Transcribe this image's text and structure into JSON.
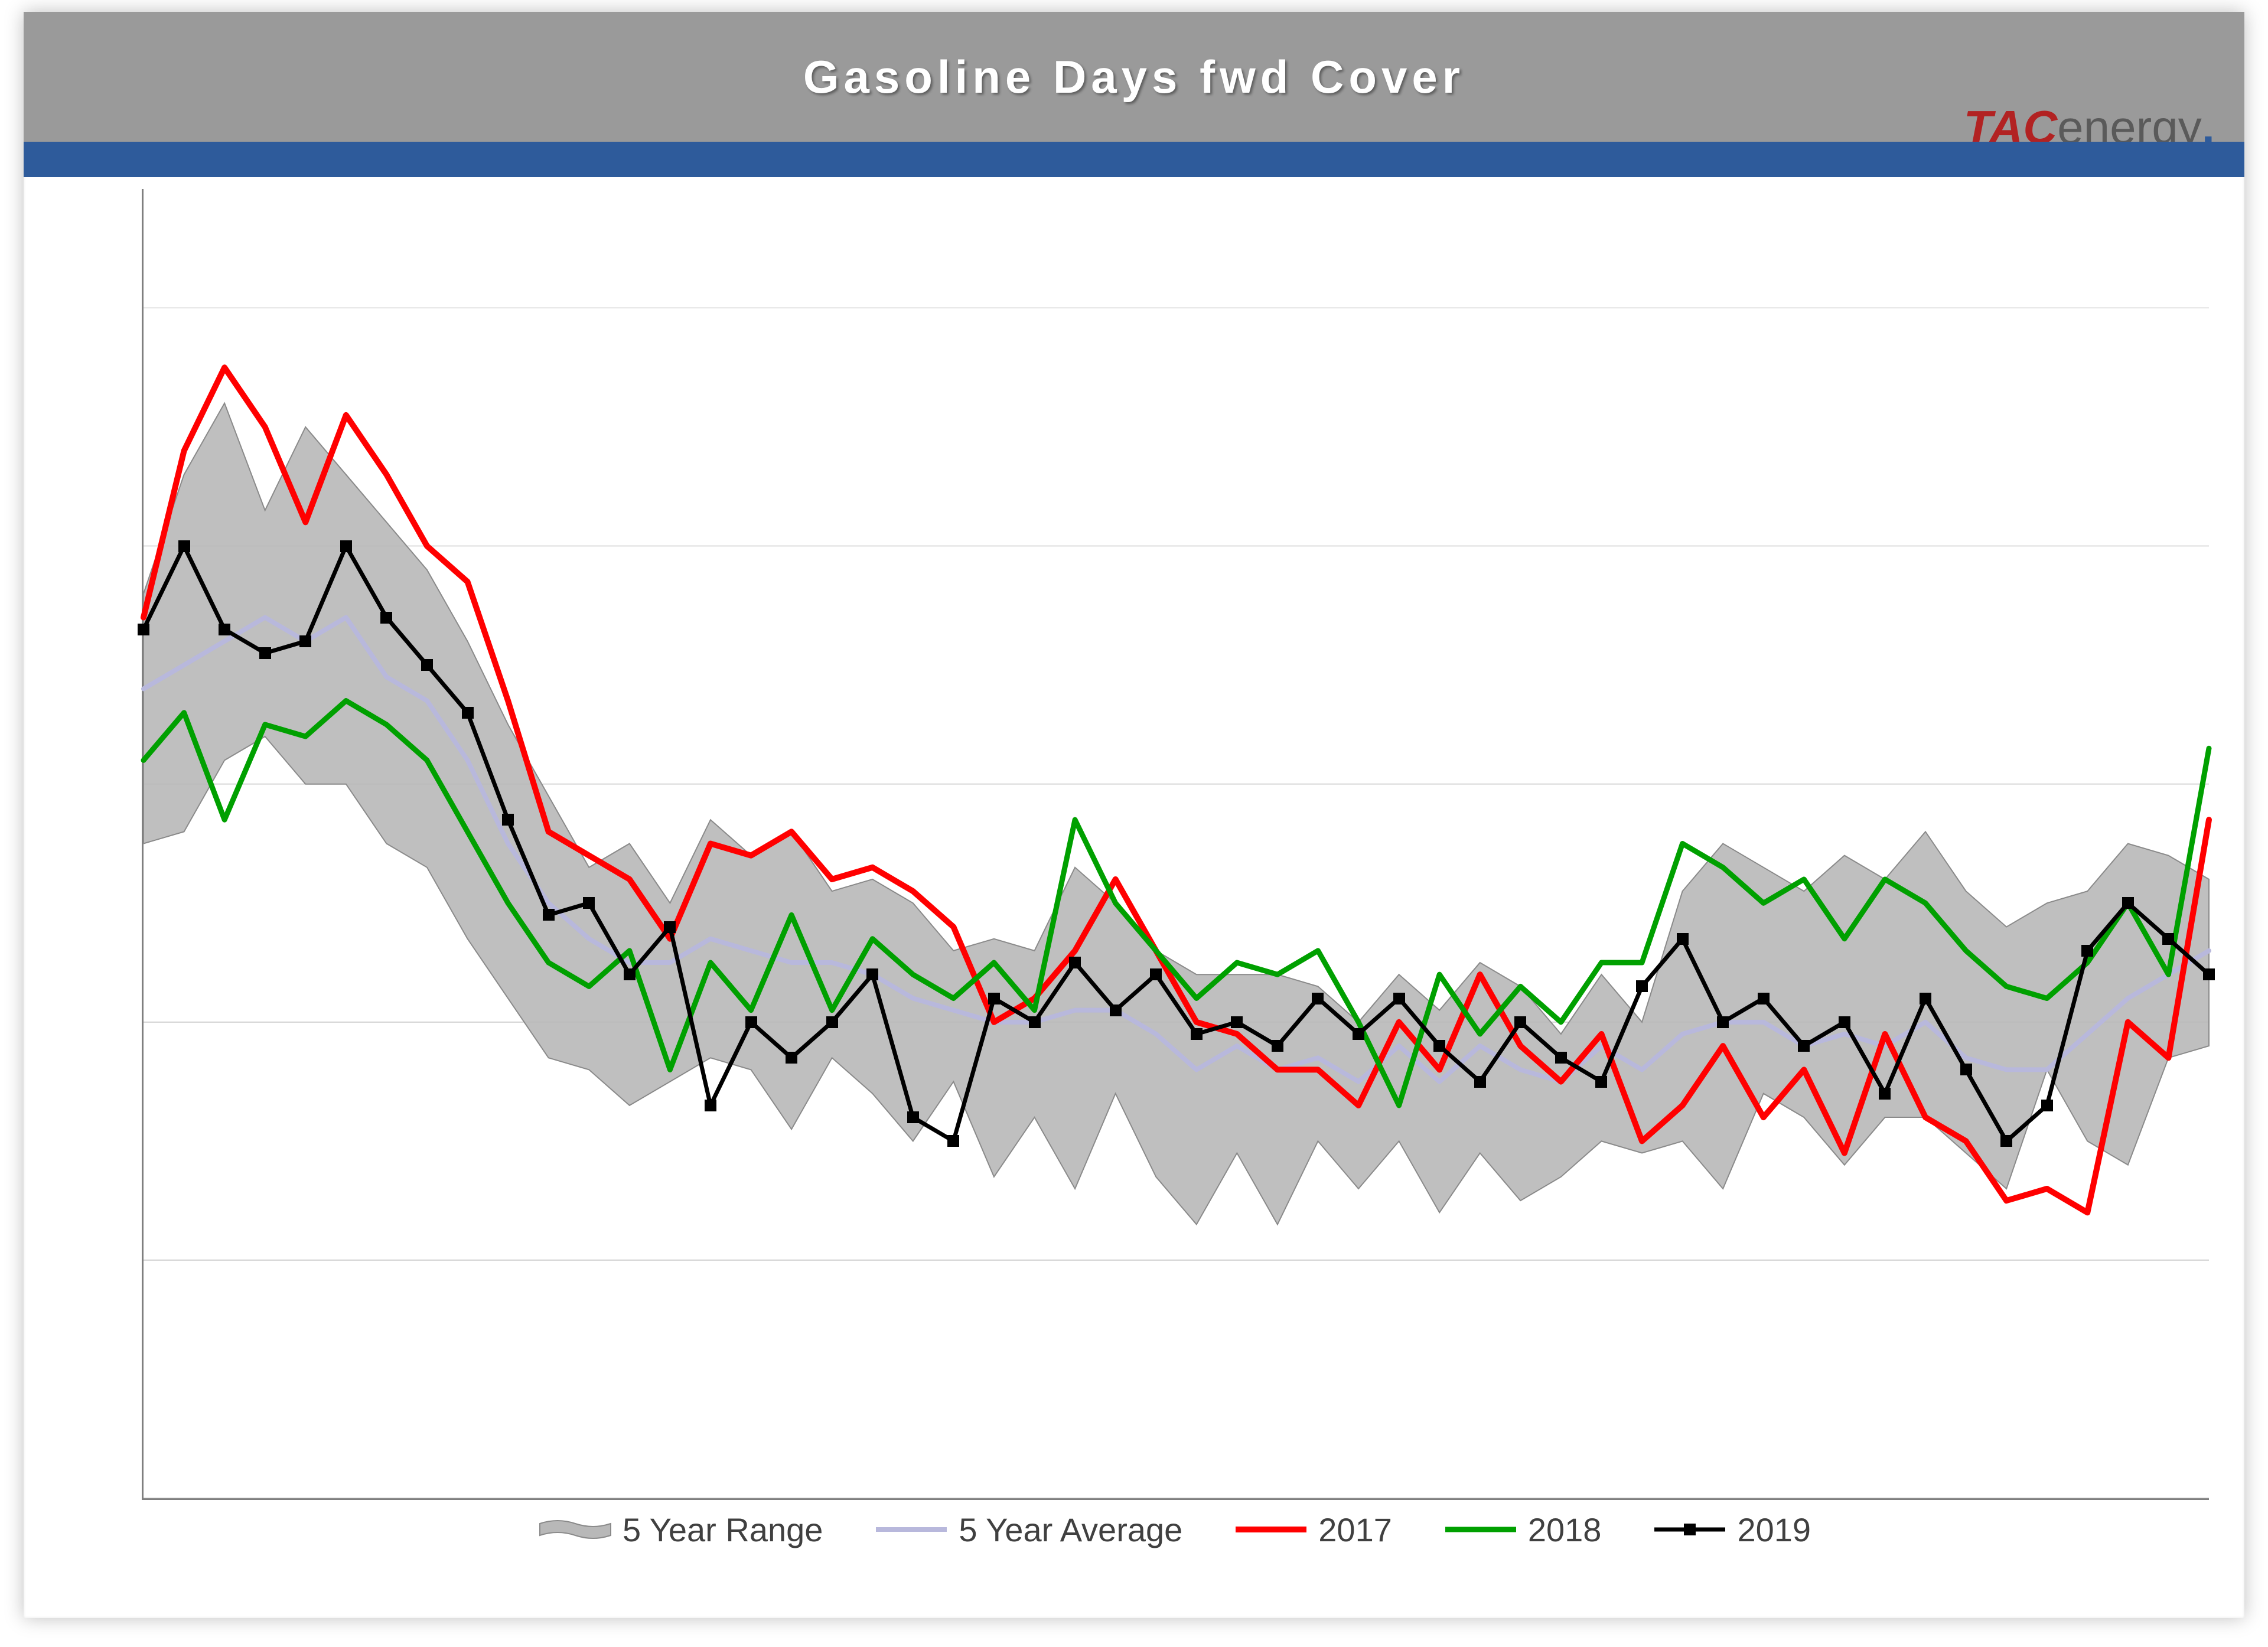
{
  "chart": {
    "type": "line",
    "title": "Gasoline Days fwd Cover",
    "title_fontsize": 78,
    "title_color": "#ffffff",
    "title_bar_color": "#9a9a9a",
    "blue_band_color": "#2e5b9b",
    "background_color": "#ffffff",
    "grid_color": "#9a9a9a",
    "axis_color": "#7f7f7f",
    "logo": {
      "tac_text": "TAC",
      "tac_color": "#b22222",
      "tail_text": "energy",
      "tail_color": "#5a5a5a",
      "dot_color": "#2e5b9b"
    },
    "ylim": [
      20,
      31
    ],
    "ytick_step": 2,
    "n_points": 52,
    "range": {
      "label": "5 Year Range",
      "fill": "#b8b8b8",
      "stroke": "#8a8a8a",
      "upper": [
        27.6,
        28.6,
        29.2,
        28.3,
        29.0,
        28.6,
        28.2,
        27.8,
        27.2,
        26.5,
        25.9,
        25.3,
        25.5,
        25.0,
        25.7,
        25.4,
        25.6,
        25.1,
        25.2,
        25.0,
        24.6,
        24.7,
        24.6,
        25.3,
        25.0,
        24.6,
        24.4,
        24.4,
        24.4,
        24.3,
        24.0,
        24.4,
        24.1,
        24.5,
        24.3,
        23.9,
        24.4,
        24.0,
        25.1,
        25.5,
        25.3,
        25.1,
        25.4,
        25.2,
        25.6,
        25.1,
        24.8,
        25.0,
        25.1,
        25.5,
        25.4,
        25.2
      ],
      "lower": [
        25.5,
        25.6,
        26.2,
        26.4,
        26.0,
        26.0,
        25.5,
        25.3,
        24.7,
        24.2,
        23.7,
        23.6,
        23.3,
        23.5,
        23.7,
        23.6,
        23.1,
        23.7,
        23.4,
        23.0,
        23.5,
        22.7,
        23.2,
        22.6,
        23.4,
        22.7,
        22.3,
        22.9,
        22.3,
        23.0,
        22.6,
        23.0,
        22.4,
        22.9,
        22.5,
        22.7,
        23.0,
        22.9,
        23.0,
        22.6,
        23.4,
        23.2,
        22.8,
        23.2,
        23.2,
        22.9,
        22.6,
        23.6,
        23.0,
        22.8,
        23.7,
        23.8
      ]
    },
    "series": [
      {
        "label": "5 Year Average",
        "color": "#b8b8dc",
        "width": 8,
        "marker": "none",
        "values": [
          26.8,
          27.0,
          27.2,
          27.4,
          27.2,
          27.4,
          26.9,
          26.7,
          26.2,
          25.5,
          25.0,
          24.7,
          24.5,
          24.5,
          24.7,
          24.6,
          24.5,
          24.5,
          24.4,
          24.2,
          24.1,
          24.0,
          24.0,
          24.1,
          24.1,
          23.9,
          23.6,
          23.8,
          23.6,
          23.7,
          23.5,
          23.8,
          23.5,
          23.8,
          23.6,
          23.5,
          23.8,
          23.6,
          23.9,
          24.0,
          24.0,
          23.8,
          23.9,
          23.8,
          24.0,
          23.7,
          23.6,
          23.6,
          23.9,
          24.2,
          24.4,
          24.6
        ]
      },
      {
        "label": "2017",
        "color": "#ff0000",
        "width": 10,
        "marker": "none",
        "values": [
          27.4,
          28.8,
          29.5,
          29.0,
          28.2,
          29.1,
          28.6,
          28.0,
          27.7,
          26.7,
          25.6,
          25.4,
          25.2,
          24.7,
          25.5,
          25.4,
          25.6,
          25.2,
          25.3,
          25.1,
          24.8,
          24.0,
          24.2,
          24.6,
          25.2,
          24.6,
          24.0,
          23.9,
          23.6,
          23.6,
          23.3,
          24.0,
          23.6,
          24.4,
          23.8,
          23.5,
          23.9,
          23.0,
          23.3,
          23.8,
          23.2,
          23.6,
          22.9,
          23.9,
          23.2,
          23.0,
          22.5,
          22.6,
          22.4,
          24.0,
          23.7,
          25.7
        ]
      },
      {
        "label": "2018",
        "color": "#00a000",
        "width": 9,
        "marker": "none",
        "values": [
          26.2,
          26.6,
          25.7,
          26.5,
          26.4,
          26.7,
          26.5,
          26.2,
          25.6,
          25.0,
          24.5,
          24.3,
          24.6,
          23.6,
          24.5,
          24.1,
          24.9,
          24.1,
          24.7,
          24.4,
          24.2,
          24.5,
          24.1,
          25.7,
          25.0,
          24.6,
          24.2,
          24.5,
          24.4,
          24.6,
          24.0,
          23.3,
          24.4,
          23.9,
          24.3,
          24.0,
          24.5,
          24.5,
          25.5,
          25.3,
          25.0,
          25.2,
          24.7,
          25.2,
          25.0,
          24.6,
          24.3,
          24.2,
          24.5,
          25.0,
          24.4,
          26.3
        ]
      },
      {
        "label": "2019",
        "color": "#000000",
        "width": 7,
        "marker": "square",
        "marker_size": 20,
        "values": [
          27.3,
          28.0,
          27.3,
          27.1,
          27.2,
          28.0,
          27.4,
          27.0,
          26.6,
          25.7,
          24.9,
          25.0,
          24.4,
          24.8,
          23.3,
          24.0,
          23.7,
          24.0,
          24.4,
          23.2,
          23.0,
          24.2,
          24.0,
          24.5,
          24.1,
          24.4,
          23.9,
          24.0,
          23.8,
          24.2,
          23.9,
          24.2,
          23.8,
          23.5,
          24.0,
          23.7,
          23.5,
          24.3,
          24.7,
          24.0,
          24.2,
          23.8,
          24.0,
          23.4,
          24.2,
          23.6,
          23.0,
          23.3,
          24.6,
          25.0,
          24.7,
          24.4
        ]
      }
    ],
    "legend_items": [
      {
        "key": "range"
      },
      {
        "key": "series",
        "index": 0
      },
      {
        "key": "series",
        "index": 1
      },
      {
        "key": "series",
        "index": 2
      },
      {
        "key": "series",
        "index": 3
      }
    ]
  }
}
